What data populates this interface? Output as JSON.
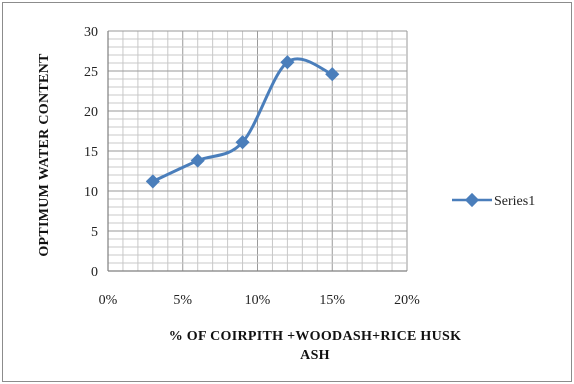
{
  "chart_data": {
    "type": "line",
    "title": "",
    "xlabel_lines": [
      "% OF COIRPITH +WOODASH+RICE HUSK",
      "ASH"
    ],
    "ylabel": "OPTIMUM WATER CONTENT",
    "x_ticks": [
      "0%",
      "5%",
      "10%",
      "15%",
      "20%"
    ],
    "y_ticks": [
      "0",
      "5",
      "10",
      "15",
      "20",
      "25",
      "30"
    ],
    "xlim": [
      0,
      20
    ],
    "ylim": [
      0,
      30
    ],
    "grid": true,
    "legend_position": "right",
    "series": [
      {
        "name": "Series1",
        "color": "#4a7ebb",
        "x": [
          3,
          6,
          9,
          12,
          15
        ],
        "y": [
          11.2,
          13.8,
          16.1,
          26.1,
          24.6
        ]
      }
    ]
  }
}
